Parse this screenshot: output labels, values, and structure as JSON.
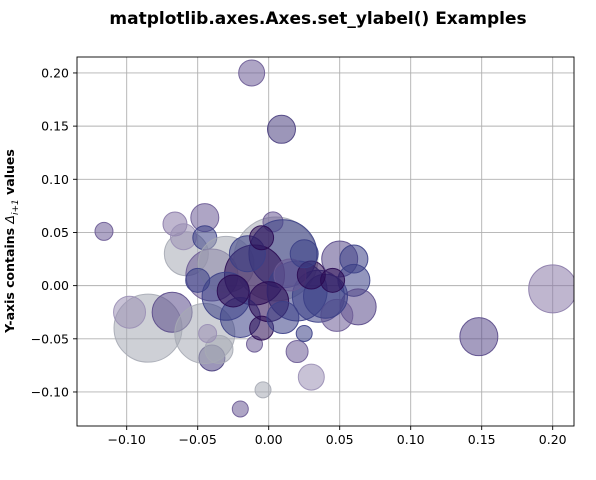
{
  "chart_data": {
    "type": "scatter",
    "title": "matplotlib.axes.Axes.set_ylabel() Examples",
    "xlabel": "",
    "ylabel": "Y-axis contains Δi+1 values",
    "ylabel_parts": {
      "prefix": "Y-axis contains ",
      "symbol": "Δ",
      "subscript": "i+1",
      "suffix": " values"
    },
    "xlim": [
      -0.135,
      0.215
    ],
    "ylim": [
      -0.132,
      0.215
    ],
    "x_ticks": [
      -0.1,
      -0.05,
      0.0,
      0.05,
      0.1,
      0.15,
      0.2
    ],
    "x_tick_labels": [
      "−0.10",
      "−0.05",
      "0.00",
      "0.05",
      "0.10",
      "0.15",
      "0.20"
    ],
    "y_ticks": [
      -0.1,
      -0.05,
      0.0,
      0.05,
      0.1,
      0.15,
      0.2
    ],
    "y_tick_labels": [
      "−0.10",
      "−0.05",
      "0.00",
      "0.05",
      "0.10",
      "0.15",
      "0.20"
    ],
    "grid": true,
    "colormap": [
      "#2a0a52",
      "#3b3f86",
      "#6b5b95",
      "#9a8fb5",
      "#a6aab4"
    ],
    "points": [
      {
        "x": -0.012,
        "y": 0.2,
        "size": 13,
        "color": "#6b5b95"
      },
      {
        "x": 0.009,
        "y": 0.147,
        "size": 14,
        "color": "#4a3f80"
      },
      {
        "x": -0.116,
        "y": 0.051,
        "size": 9,
        "color": "#6b5b95"
      },
      {
        "x": 0.2,
        "y": -0.003,
        "size": 24,
        "color": "#8a7aa8"
      },
      {
        "x": 0.148,
        "y": -0.048,
        "size": 19,
        "color": "#5a4a8a"
      },
      {
        "x": 0.03,
        "y": -0.086,
        "size": 13,
        "color": "#9a8fb5"
      },
      {
        "x": -0.02,
        "y": -0.116,
        "size": 8,
        "color": "#6b5b95"
      },
      {
        "x": -0.004,
        "y": -0.098,
        "size": 8,
        "color": "#a6aab4"
      },
      {
        "x": -0.04,
        "y": -0.068,
        "size": 13,
        "color": "#4a3f80"
      },
      {
        "x": -0.085,
        "y": -0.04,
        "size": 34,
        "color": "#a6aab4"
      },
      {
        "x": -0.098,
        "y": -0.025,
        "size": 16,
        "color": "#9a8fb5"
      },
      {
        "x": -0.068,
        "y": -0.025,
        "size": 20,
        "color": "#5a4a8a"
      },
      {
        "x": -0.045,
        "y": -0.045,
        "size": 30,
        "color": "#a6aab4"
      },
      {
        "x": -0.058,
        "y": 0.03,
        "size": 22,
        "color": "#a6aab4"
      },
      {
        "x": -0.066,
        "y": 0.058,
        "size": 12,
        "color": "#8a7aa8"
      },
      {
        "x": -0.045,
        "y": 0.064,
        "size": 14,
        "color": "#6b5b95"
      },
      {
        "x": -0.06,
        "y": 0.046,
        "size": 13,
        "color": "#9a8fb5"
      },
      {
        "x": -0.045,
        "y": 0.045,
        "size": 12,
        "color": "#3b3f86"
      },
      {
        "x": -0.04,
        "y": 0.01,
        "size": 26,
        "color": "#6b5b95"
      },
      {
        "x": -0.03,
        "y": 0.02,
        "size": 28,
        "color": "#a6aab4"
      },
      {
        "x": 0.005,
        "y": 0.025,
        "size": 42,
        "color": "#a6aab4"
      },
      {
        "x": 0.003,
        "y": 0.06,
        "size": 10,
        "color": "#6b5b95"
      },
      {
        "x": 0.01,
        "y": 0.03,
        "size": 34,
        "color": "#3b3f86"
      },
      {
        "x": -0.01,
        "y": 0.01,
        "size": 30,
        "color": "#2a0a52"
      },
      {
        "x": -0.03,
        "y": -0.01,
        "size": 24,
        "color": "#3b3f86"
      },
      {
        "x": 0.02,
        "y": -0.005,
        "size": 30,
        "color": "#3b3f86"
      },
      {
        "x": 0.035,
        "y": -0.01,
        "size": 26,
        "color": "#3b3f86"
      },
      {
        "x": 0.05,
        "y": 0.025,
        "size": 18,
        "color": "#5a4a8a"
      },
      {
        "x": 0.06,
        "y": 0.025,
        "size": 14,
        "color": "#3b3f86"
      },
      {
        "x": 0.06,
        "y": 0.005,
        "size": 16,
        "color": "#3b3f86"
      },
      {
        "x": 0.063,
        "y": -0.02,
        "size": 18,
        "color": "#5a4a8a"
      },
      {
        "x": 0.048,
        "y": -0.028,
        "size": 16,
        "color": "#6b5b95"
      },
      {
        "x": 0.04,
        "y": -0.01,
        "size": 22,
        "color": "#3b3f86"
      },
      {
        "x": -0.02,
        "y": -0.03,
        "size": 20,
        "color": "#3b3f86"
      },
      {
        "x": -0.035,
        "y": -0.06,
        "size": 14,
        "color": "#a6aab4"
      },
      {
        "x": -0.043,
        "y": -0.045,
        "size": 9,
        "color": "#9a8fb5"
      },
      {
        "x": 0.02,
        "y": -0.062,
        "size": 11,
        "color": "#6b5b95"
      },
      {
        "x": 0.025,
        "y": -0.045,
        "size": 8,
        "color": "#3b3f86"
      },
      {
        "x": -0.01,
        "y": -0.055,
        "size": 8,
        "color": "#6b5b95"
      },
      {
        "x": -0.005,
        "y": -0.04,
        "size": 12,
        "color": "#2a0a52"
      },
      {
        "x": 0.015,
        "y": 0.01,
        "size": 16,
        "color": "#6b5b95"
      },
      {
        "x": 0.03,
        "y": 0.01,
        "size": 14,
        "color": "#2a0a52"
      },
      {
        "x": -0.015,
        "y": 0.03,
        "size": 18,
        "color": "#3b3f86"
      },
      {
        "x": 0.0,
        "y": -0.015,
        "size": 20,
        "color": "#2a0a52"
      },
      {
        "x": -0.025,
        "y": -0.005,
        "size": 16,
        "color": "#2a0a52"
      },
      {
        "x": 0.025,
        "y": 0.03,
        "size": 14,
        "color": "#3b3f86"
      },
      {
        "x": 0.045,
        "y": 0.005,
        "size": 12,
        "color": "#2a0a52"
      },
      {
        "x": -0.05,
        "y": 0.005,
        "size": 12,
        "color": "#3b3f86"
      },
      {
        "x": 0.01,
        "y": -0.03,
        "size": 16,
        "color": "#3b3f86"
      },
      {
        "x": -0.005,
        "y": 0.045,
        "size": 12,
        "color": "#2a0a52"
      }
    ]
  }
}
